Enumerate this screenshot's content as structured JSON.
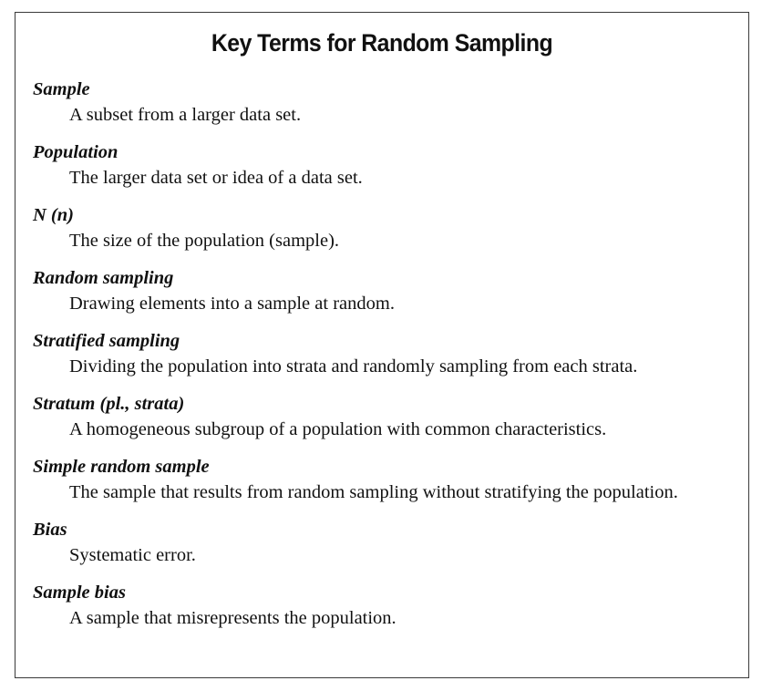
{
  "title": "Key Terms for Random Sampling",
  "terms": [
    {
      "term": "Sample",
      "definition": "A subset from a larger data set."
    },
    {
      "term": "Population",
      "definition": "The larger data set or idea of a data set."
    },
    {
      "term": "N (n)",
      "definition": "The size of the population (sample)."
    },
    {
      "term": "Random sampling",
      "definition": "Drawing elements into a sample at random."
    },
    {
      "term": "Stratified sampling",
      "definition": "Dividing the population into strata and randomly sampling from each strata."
    },
    {
      "term": "Stratum (pl., strata)",
      "definition": "A homogeneous subgroup of a population with common characteristics."
    },
    {
      "term": "Simple random sample",
      "definition": "The sample that results from random sampling without stratifying the population."
    },
    {
      "term": "Bias",
      "definition": "Systematic error."
    },
    {
      "term": "Sample bias",
      "definition": "A sample that misrepresents the population."
    }
  ]
}
